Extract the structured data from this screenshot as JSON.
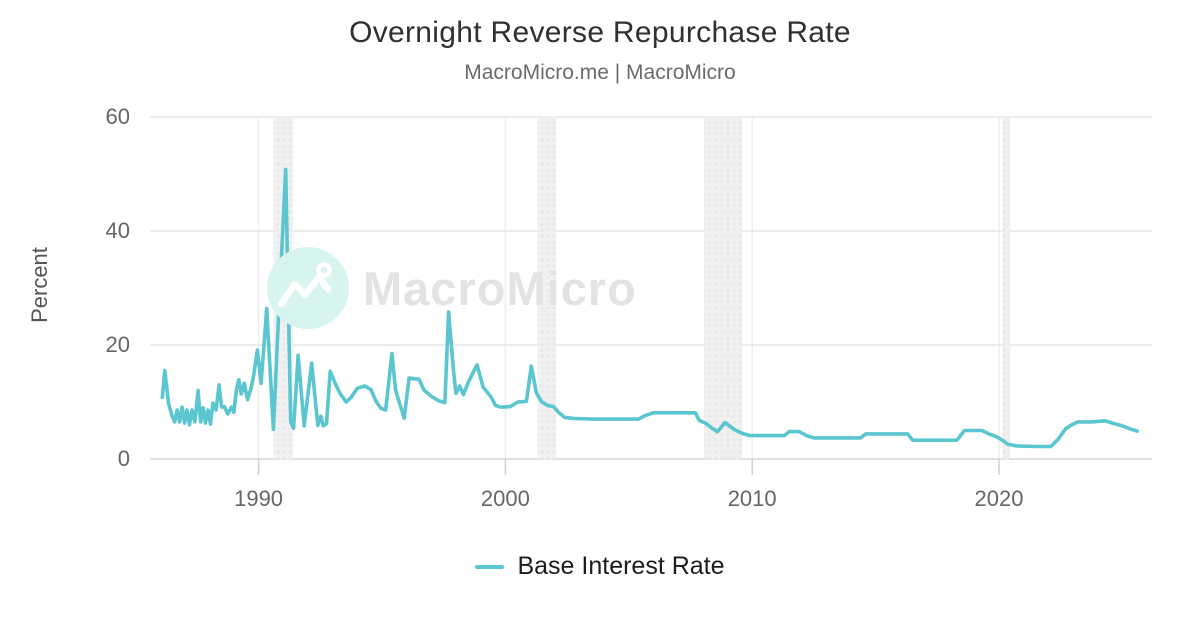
{
  "header": {
    "title": "Overnight Reverse Repurchase Rate",
    "subtitle": "MacroMicro.me | MacroMicro"
  },
  "watermark": {
    "logo": "macromicro-logo",
    "text": "MacroMicro",
    "circle_color": "#d8f4ee",
    "glyph_color": "#ffffff",
    "text_color": "#e3e3e3"
  },
  "legend": {
    "items": [
      {
        "label": "Base Interest Rate",
        "color": "#5bc6d0"
      }
    ]
  },
  "chart_data": {
    "type": "line",
    "title": "Overnight Reverse Repurchase Rate",
    "subtitle": "MacroMicro.me | MacroMicro",
    "xlabel": "",
    "ylabel": "Percent",
    "ylim": [
      0,
      60
    ],
    "yticks": [
      0,
      20,
      40,
      60
    ],
    "xlim": [
      1985.6,
      2026.2
    ],
    "xticks": [
      1990,
      2000,
      2010,
      2020
    ],
    "grid": "on",
    "legend_position": "bottom",
    "line_color": "#5bc6d0",
    "band_color": "#f0f0f0",
    "band_dot_color": "#e2e2e2",
    "recession_bands": [
      [
        1990.6,
        1991.4
      ],
      [
        2001.3,
        2002.05
      ],
      [
        2008.05,
        2009.6
      ],
      [
        2020.15,
        2020.45
      ]
    ],
    "series": [
      {
        "name": "Base Interest Rate",
        "color": "#5bc6d0",
        "points": [
          [
            1986.1,
            10.8
          ],
          [
            1986.2,
            15.5
          ],
          [
            1986.35,
            9.8
          ],
          [
            1986.5,
            7.5
          ],
          [
            1986.6,
            6.5
          ],
          [
            1986.7,
            8.6
          ],
          [
            1986.8,
            6.5
          ],
          [
            1986.9,
            9.1
          ],
          [
            1987.0,
            6.3
          ],
          [
            1987.1,
            8.6
          ],
          [
            1987.2,
            6.0
          ],
          [
            1987.3,
            8.6
          ],
          [
            1987.42,
            6.5
          ],
          [
            1987.55,
            12.0
          ],
          [
            1987.65,
            6.5
          ],
          [
            1987.75,
            9.0
          ],
          [
            1987.85,
            6.3
          ],
          [
            1987.95,
            8.6
          ],
          [
            1988.05,
            6.1
          ],
          [
            1988.15,
            9.8
          ],
          [
            1988.28,
            8.6
          ],
          [
            1988.4,
            13.0
          ],
          [
            1988.5,
            9.1
          ],
          [
            1988.62,
            9.2
          ],
          [
            1988.75,
            7.9
          ],
          [
            1988.9,
            9.1
          ],
          [
            1989.0,
            8.2
          ],
          [
            1989.1,
            12.1
          ],
          [
            1989.2,
            13.9
          ],
          [
            1989.3,
            11.4
          ],
          [
            1989.42,
            13.3
          ],
          [
            1989.55,
            10.4
          ],
          [
            1989.7,
            12.5
          ],
          [
            1989.8,
            14.7
          ],
          [
            1989.95,
            19.1
          ],
          [
            1990.1,
            13.3
          ],
          [
            1990.33,
            26.4
          ],
          [
            1990.6,
            5.2
          ],
          [
            1990.75,
            19.6
          ],
          [
            1991.1,
            50.8
          ],
          [
            1991.3,
            6.5
          ],
          [
            1991.42,
            5.4
          ],
          [
            1991.6,
            18.2
          ],
          [
            1991.85,
            5.8
          ],
          [
            1992.15,
            16.8
          ],
          [
            1992.4,
            5.9
          ],
          [
            1992.52,
            7.5
          ],
          [
            1992.62,
            5.8
          ],
          [
            1992.75,
            6.2
          ],
          [
            1992.9,
            15.4
          ],
          [
            1993.1,
            13.3
          ],
          [
            1993.3,
            11.5
          ],
          [
            1993.55,
            10.0
          ],
          [
            1993.75,
            10.8
          ],
          [
            1994.0,
            12.4
          ],
          [
            1994.3,
            12.8
          ],
          [
            1994.55,
            12.2
          ],
          [
            1994.75,
            10.2
          ],
          [
            1994.95,
            8.9
          ],
          [
            1995.15,
            8.6
          ],
          [
            1995.4,
            18.5
          ],
          [
            1995.55,
            12.1
          ],
          [
            1995.68,
            10.2
          ],
          [
            1995.9,
            7.2
          ],
          [
            1996.1,
            14.2
          ],
          [
            1996.5,
            14.0
          ],
          [
            1996.7,
            12.1
          ],
          [
            1997.0,
            11.0
          ],
          [
            1997.3,
            10.2
          ],
          [
            1997.55,
            9.9
          ],
          [
            1997.7,
            25.8
          ],
          [
            1997.9,
            15.3
          ],
          [
            1998.0,
            11.5
          ],
          [
            1998.15,
            12.8
          ],
          [
            1998.3,
            11.3
          ],
          [
            1998.5,
            13.5
          ],
          [
            1998.85,
            16.5
          ],
          [
            1999.1,
            12.6
          ],
          [
            1999.4,
            11.0
          ],
          [
            1999.6,
            9.4
          ],
          [
            1999.8,
            9.1
          ],
          [
            2000.2,
            9.2
          ],
          [
            2000.5,
            10.0
          ],
          [
            2000.85,
            10.1
          ],
          [
            2001.05,
            16.3
          ],
          [
            2001.25,
            11.7
          ],
          [
            2001.45,
            10.1
          ],
          [
            2001.7,
            9.4
          ],
          [
            2001.95,
            9.2
          ],
          [
            2002.15,
            8.2
          ],
          [
            2002.4,
            7.3
          ],
          [
            2002.8,
            7.1
          ],
          [
            2003.5,
            7.0
          ],
          [
            2004.5,
            7.0
          ],
          [
            2005.4,
            7.0
          ],
          [
            2005.65,
            7.6
          ],
          [
            2006.0,
            8.1
          ],
          [
            2007.0,
            8.1
          ],
          [
            2007.7,
            8.1
          ],
          [
            2007.85,
            6.8
          ],
          [
            2008.1,
            6.3
          ],
          [
            2008.4,
            5.3
          ],
          [
            2008.6,
            4.8
          ],
          [
            2008.9,
            6.4
          ],
          [
            2009.3,
            5.1
          ],
          [
            2009.6,
            4.5
          ],
          [
            2009.9,
            4.1
          ],
          [
            2010.5,
            4.1
          ],
          [
            2011.3,
            4.1
          ],
          [
            2011.5,
            4.8
          ],
          [
            2011.9,
            4.8
          ],
          [
            2012.2,
            4.1
          ],
          [
            2012.5,
            3.7
          ],
          [
            2013.5,
            3.7
          ],
          [
            2014.4,
            3.7
          ],
          [
            2014.6,
            4.4
          ],
          [
            2015.5,
            4.4
          ],
          [
            2016.3,
            4.4
          ],
          [
            2016.5,
            3.3
          ],
          [
            2017.5,
            3.3
          ],
          [
            2018.3,
            3.3
          ],
          [
            2018.6,
            5.0
          ],
          [
            2019.3,
            5.0
          ],
          [
            2019.6,
            4.4
          ],
          [
            2019.9,
            3.9
          ],
          [
            2020.1,
            3.4
          ],
          [
            2020.35,
            2.6
          ],
          [
            2020.7,
            2.3
          ],
          [
            2021.5,
            2.2
          ],
          [
            2022.1,
            2.2
          ],
          [
            2022.4,
            3.5
          ],
          [
            2022.7,
            5.3
          ],
          [
            2022.95,
            6.0
          ],
          [
            2023.2,
            6.5
          ],
          [
            2023.7,
            6.5
          ],
          [
            2024.0,
            6.6
          ],
          [
            2024.3,
            6.7
          ],
          [
            2024.6,
            6.3
          ],
          [
            2025.0,
            5.8
          ],
          [
            2025.3,
            5.3
          ],
          [
            2025.6,
            4.9
          ]
        ]
      }
    ]
  }
}
